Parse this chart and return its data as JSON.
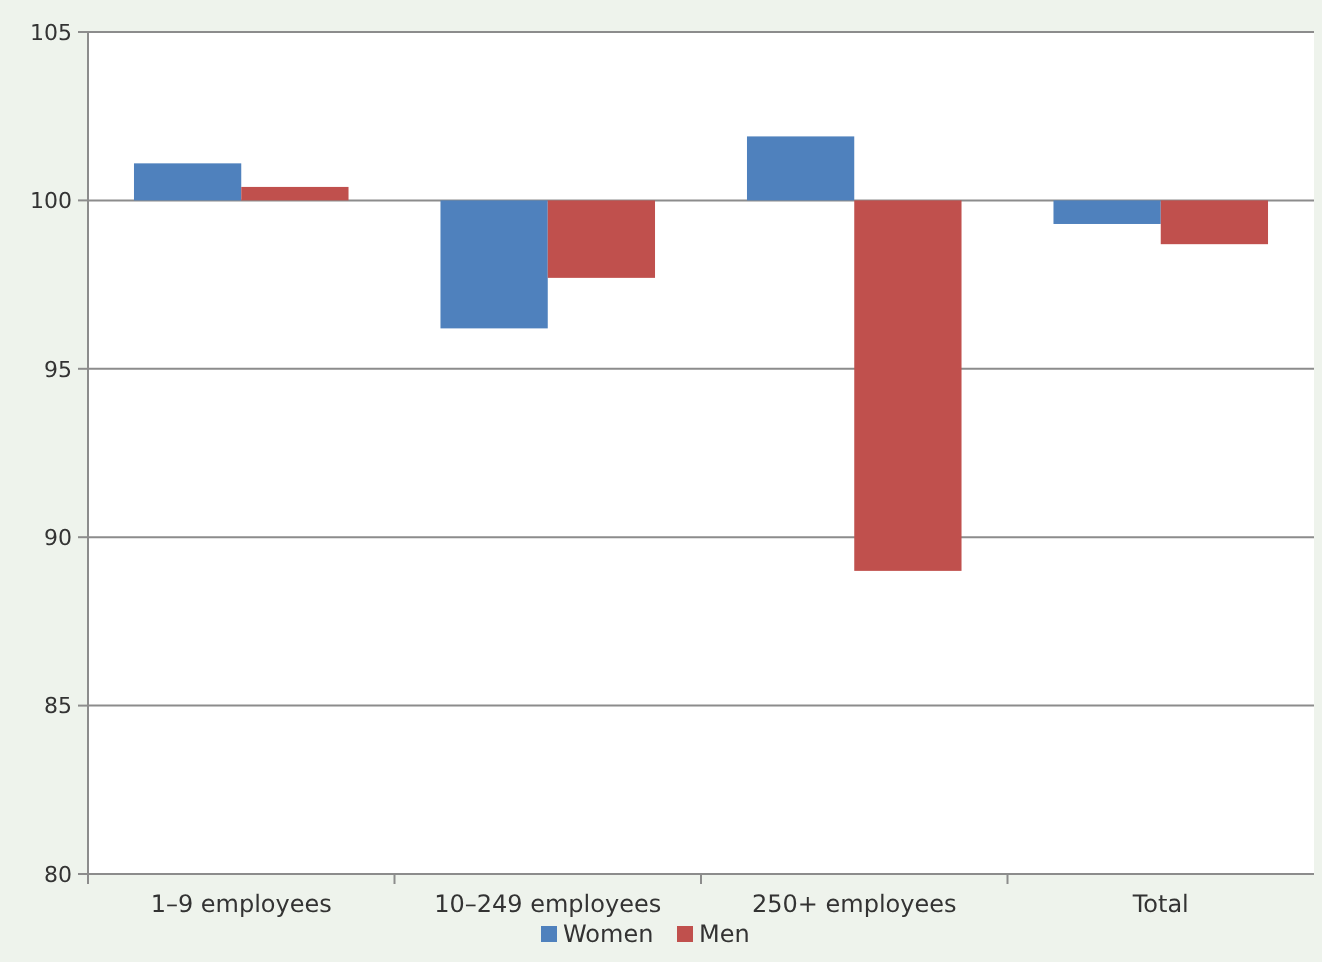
{
  "chart_data": {
    "type": "bar",
    "categories": [
      "1–9 employees",
      "10–249 employees",
      "250+ employees",
      "Total"
    ],
    "series": [
      {
        "name": "Women",
        "color": "#4f81bd",
        "base": [
          100,
          100,
          100,
          100
        ],
        "values": [
          1.1,
          -3.8,
          1.9,
          -0.7
        ]
      },
      {
        "name": "Men",
        "color": "#c0504d",
        "base": [
          100,
          100,
          100,
          100
        ],
        "values": [
          0.4,
          -2.3,
          -11.0,
          -1.3
        ]
      }
    ],
    "ylim": [
      80,
      105
    ],
    "yticks": [
      80,
      85,
      90,
      95,
      100,
      105
    ],
    "grid": "y",
    "legend": "bottom"
  }
}
